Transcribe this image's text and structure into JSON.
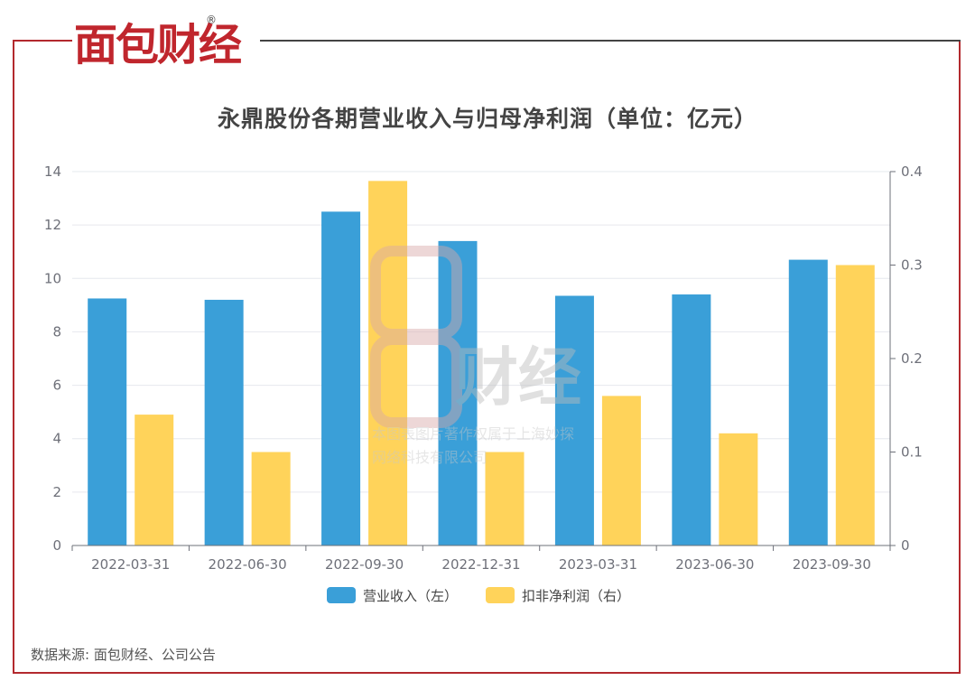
{
  "brand": {
    "logo_text": "面包财经",
    "registered_mark": "®",
    "logo_color": "#c0262d"
  },
  "watermark": {
    "line1": "本图表图片著作权属于上海妙探",
    "line2": "网络科技有限公司"
  },
  "source": "数据来源: 面包财经、公司公告",
  "chart_data": {
    "type": "bar",
    "title": "永鼎股份各期营业收入与归母净利润（单位：亿元）",
    "categories": [
      "2022-03-31",
      "2022-06-30",
      "2022-09-30",
      "2022-12-31",
      "2023-03-31",
      "2023-06-30",
      "2023-09-30"
    ],
    "series": [
      {
        "name": "营业收入（左）",
        "axis": "left",
        "color": "#3a9fd8",
        "values": [
          9.25,
          9.2,
          12.5,
          11.4,
          9.35,
          9.4,
          10.7
        ]
      },
      {
        "name": "扣非净利润（右）",
        "axis": "right",
        "color": "#ffd35a",
        "values": [
          0.14,
          0.1,
          0.39,
          0.1,
          0.16,
          0.12,
          0.3
        ]
      }
    ],
    "y_left": {
      "min": 0,
      "max": 14,
      "ticks": [
        "0",
        "2",
        "4",
        "6",
        "8",
        "10",
        "12",
        "14"
      ]
    },
    "y_right": {
      "min": 0,
      "max": 0.4,
      "ticks": [
        "0",
        "0.1",
        "0.2",
        "0.3",
        "0.4"
      ]
    },
    "grid": true,
    "legend_position": "bottom"
  }
}
